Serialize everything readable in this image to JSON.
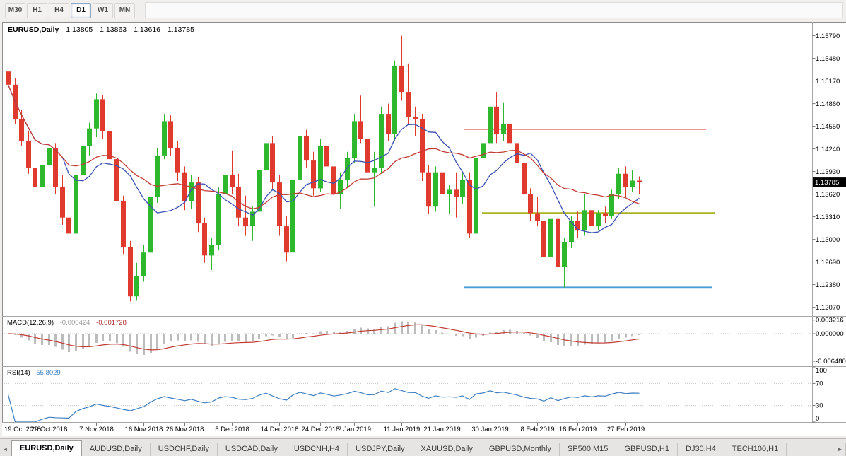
{
  "toolbar": {
    "timeframes": [
      {
        "label": "M30",
        "active": false
      },
      {
        "label": "H1",
        "active": false
      },
      {
        "label": "H4",
        "active": false
      },
      {
        "label": "D1",
        "active": true
      },
      {
        "label": "W1",
        "active": false
      },
      {
        "label": "MN",
        "active": false
      }
    ]
  },
  "chart": {
    "symbol": "EURUSD,Daily",
    "open": "1.13805",
    "high": "1.13863",
    "low": "1.13616",
    "close": "1.13785",
    "current_price_label": "1.13785"
  },
  "macd": {
    "name": "MACD(12,26,9)",
    "value_main": "-0.000424",
    "value_signal": "-0.001728"
  },
  "rsi": {
    "name": "RSI(14)",
    "value": "55.8029"
  },
  "tabs": {
    "left_scroll": "◄",
    "right_scroll": "►",
    "items": [
      {
        "label": "EURUSD,Daily",
        "active": true
      },
      {
        "label": "AUDUSD,Daily",
        "active": false
      },
      {
        "label": "USDCHF,Daily",
        "active": false
      },
      {
        "label": "USDCAD,Daily",
        "active": false
      },
      {
        "label": "USDCNH,H4",
        "active": false
      },
      {
        "label": "USDJPY,Daily",
        "active": false
      },
      {
        "label": "XAUUSD,Daily",
        "active": false
      },
      {
        "label": "GBPUSD,Monthly",
        "active": false
      },
      {
        "label": "SP500,M15",
        "active": false
      },
      {
        "label": "GBPUSD,H1",
        "active": false
      },
      {
        "label": "DJ30,H4",
        "active": false
      },
      {
        "label": "TECH100,H1",
        "active": false
      }
    ]
  },
  "colors": {
    "bull": "#2eb82e",
    "bear": "#e0392e",
    "background": "#ffffff",
    "axis_text": "#000000",
    "panel_border": "#a5a5a5",
    "price_box_bg": "#000000",
    "price_box_text": "#ffffff"
  },
  "chart_data": {
    "type": "candlestick",
    "symbol": "EURUSD",
    "timeframe": "Daily",
    "y_range": [
      1.1196,
      1.1598
    ],
    "price_ticks": [
      "1.15790",
      "1.15480",
      "1.15170",
      "1.14860",
      "1.14550",
      "1.14240",
      "1.13930",
      "1.13620",
      "1.13310",
      "1.13000",
      "1.12690",
      "1.12380",
      "1.12070"
    ],
    "date_labels": [
      "19 Oct 2018",
      "29 Oct 2018",
      "7 Nov 2018",
      "16 Nov 2018",
      "26 Nov 2018",
      "5 Dec 2018",
      "14 Dec 2018",
      "24 Dec 2018",
      "2 Jan 2019",
      "11 Jan 2019",
      "21 Jan 2019",
      "30 Jan 2019",
      "8 Feb 2019",
      "18 Feb 2019",
      "27 Feb 2019"
    ],
    "date_label_indices": [
      0,
      6,
      13,
      20,
      26,
      33,
      40,
      46,
      51,
      58,
      64,
      71,
      78,
      84,
      91
    ],
    "current_ohlc": {
      "open": 1.13805,
      "high": 1.13863,
      "low": 1.13616,
      "close": 1.13785
    },
    "candles": [
      [
        1.153,
        1.154,
        1.15,
        1.1512
      ],
      [
        1.1512,
        1.1521,
        1.1458,
        1.1465
      ],
      [
        1.1465,
        1.1478,
        1.1428,
        1.1435
      ],
      [
        1.1435,
        1.1449,
        1.139,
        1.1398
      ],
      [
        1.1398,
        1.1415,
        1.1362,
        1.1372
      ],
      [
        1.1372,
        1.141,
        1.1358,
        1.1402
      ],
      [
        1.1402,
        1.1438,
        1.1392,
        1.1425
      ],
      [
        1.1425,
        1.1432,
        1.1362,
        1.1372
      ],
      [
        1.1372,
        1.1388,
        1.132,
        1.133
      ],
      [
        1.133,
        1.1342,
        1.1302,
        1.1308
      ],
      [
        1.1308,
        1.1392,
        1.1302,
        1.1388
      ],
      [
        1.1388,
        1.1435,
        1.138,
        1.1428
      ],
      [
        1.1428,
        1.146,
        1.1415,
        1.1452
      ],
      [
        1.1452,
        1.15,
        1.144,
        1.1492
      ],
      [
        1.1492,
        1.1498,
        1.1438,
        1.1448
      ],
      [
        1.1448,
        1.1455,
        1.14,
        1.141
      ],
      [
        1.141,
        1.1418,
        1.1342,
        1.1352
      ],
      [
        1.1352,
        1.136,
        1.128,
        1.129
      ],
      [
        1.129,
        1.1298,
        1.1215,
        1.1222
      ],
      [
        1.1222,
        1.1268,
        1.1216,
        1.125
      ],
      [
        1.125,
        1.1292,
        1.1242,
        1.1282
      ],
      [
        1.1282,
        1.1365,
        1.1278,
        1.1358
      ],
      [
        1.1358,
        1.1425,
        1.135,
        1.1415
      ],
      [
        1.1415,
        1.1472,
        1.141,
        1.1462
      ],
      [
        1.1462,
        1.147,
        1.1415,
        1.1425
      ],
      [
        1.1425,
        1.1435,
        1.138,
        1.1392
      ],
      [
        1.1392,
        1.14,
        1.134,
        1.1352
      ],
      [
        1.1352,
        1.1388,
        1.1342,
        1.1378
      ],
      [
        1.1378,
        1.1385,
        1.131,
        1.1322
      ],
      [
        1.1322,
        1.133,
        1.1268,
        1.1278
      ],
      [
        1.1278,
        1.1302,
        1.1258,
        1.1292
      ],
      [
        1.1292,
        1.1372,
        1.1285,
        1.1362
      ],
      [
        1.1362,
        1.14,
        1.1352,
        1.1388
      ],
      [
        1.1388,
        1.1422,
        1.1362,
        1.1372
      ],
      [
        1.1372,
        1.139,
        1.1318,
        1.133
      ],
      [
        1.133,
        1.136,
        1.1305,
        1.1318
      ],
      [
        1.1318,
        1.1345,
        1.1298,
        1.1338
      ],
      [
        1.1338,
        1.1402,
        1.1332,
        1.1395
      ],
      [
        1.1395,
        1.144,
        1.1388,
        1.1432
      ],
      [
        1.1432,
        1.1442,
        1.1368,
        1.1378
      ],
      [
        1.1378,
        1.1388,
        1.1305,
        1.1318
      ],
      [
        1.1318,
        1.1332,
        1.127,
        1.1282
      ],
      [
        1.1282,
        1.139,
        1.1275,
        1.1382
      ],
      [
        1.1382,
        1.1485,
        1.1375,
        1.1442
      ],
      [
        1.1442,
        1.145,
        1.1398,
        1.1408
      ],
      [
        1.1408,
        1.142,
        1.136,
        1.137
      ],
      [
        1.137,
        1.1438,
        1.1365,
        1.1428
      ],
      [
        1.1428,
        1.144,
        1.139,
        1.14
      ],
      [
        1.14,
        1.1412,
        1.1352,
        1.1362
      ],
      [
        1.1362,
        1.1392,
        1.1342,
        1.1382
      ],
      [
        1.1382,
        1.142,
        1.1372,
        1.1412
      ],
      [
        1.1412,
        1.1472,
        1.1405,
        1.1462
      ],
      [
        1.1462,
        1.1497,
        1.1432,
        1.1438
      ],
      [
        1.1438,
        1.1442,
        1.1309,
        1.1392
      ],
      [
        1.1392,
        1.142,
        1.1345,
        1.1398
      ],
      [
        1.1398,
        1.1482,
        1.139,
        1.1472
      ],
      [
        1.1472,
        1.1486,
        1.1435,
        1.1445
      ],
      [
        1.1445,
        1.1545,
        1.1435,
        1.1538
      ],
      [
        1.1538,
        1.1579,
        1.149,
        1.1502
      ],
      [
        1.1502,
        1.1541,
        1.1458,
        1.1468
      ],
      [
        1.1468,
        1.1482,
        1.1442,
        1.1465
      ],
      [
        1.1465,
        1.1472,
        1.138,
        1.1392
      ],
      [
        1.1392,
        1.1402,
        1.1335,
        1.1345
      ],
      [
        1.1345,
        1.14,
        1.1338,
        1.1392
      ],
      [
        1.1392,
        1.1398,
        1.1352,
        1.1362
      ],
      [
        1.1362,
        1.1375,
        1.1335,
        1.1368
      ],
      [
        1.1368,
        1.1392,
        1.133,
        1.1358
      ],
      [
        1.1358,
        1.1392,
        1.1348,
        1.1382
      ],
      [
        1.1382,
        1.1392,
        1.1302,
        1.1308
      ],
      [
        1.1308,
        1.142,
        1.1302,
        1.1412
      ],
      [
        1.1412,
        1.1442,
        1.1402,
        1.1432
      ],
      [
        1.1432,
        1.1514,
        1.1425,
        1.1482
      ],
      [
        1.1482,
        1.1502,
        1.1432,
        1.1445
      ],
      [
        1.1445,
        1.1488,
        1.1435,
        1.1458
      ],
      [
        1.1458,
        1.1465,
        1.1425,
        1.1432
      ],
      [
        1.1432,
        1.144,
        1.1398,
        1.1405
      ],
      [
        1.1405,
        1.1412,
        1.1355,
        1.1362
      ],
      [
        1.1362,
        1.137,
        1.1325,
        1.1336
      ],
      [
        1.1336,
        1.1358,
        1.1318,
        1.1325
      ],
      [
        1.1325,
        1.133,
        1.1265,
        1.1276
      ],
      [
        1.1276,
        1.134,
        1.1258,
        1.1328
      ],
      [
        1.1328,
        1.1345,
        1.1255,
        1.1262
      ],
      [
        1.1262,
        1.1302,
        1.1234,
        1.1296
      ],
      [
        1.1296,
        1.1332,
        1.1288,
        1.1325
      ],
      [
        1.1325,
        1.1338,
        1.1302,
        1.1312
      ],
      [
        1.1312,
        1.1362,
        1.1305,
        1.134
      ],
      [
        1.134,
        1.1358,
        1.1302,
        1.1318
      ],
      [
        1.1318,
        1.134,
        1.1312,
        1.1336
      ],
      [
        1.1336,
        1.1345,
        1.1322,
        1.1332
      ],
      [
        1.1332,
        1.1368,
        1.1328,
        1.1362
      ],
      [
        1.1362,
        1.1398,
        1.1355,
        1.139
      ],
      [
        1.139,
        1.14,
        1.1358,
        1.1372
      ],
      [
        1.1372,
        1.1395,
        1.1365,
        1.13805
      ],
      [
        1.13805,
        1.13863,
        1.13616,
        1.13785
      ]
    ],
    "moving_averages": [
      {
        "name": "ma-fast-blue",
        "period": 9,
        "color": "#3c50b4"
      },
      {
        "name": "ma-slow-red",
        "period": 21,
        "color": "#c23b33"
      }
    ],
    "hlines": [
      {
        "name": "resistance-hline-red",
        "price": 1.1451,
        "color": "#e0564e",
        "width": 1.6,
        "x1": 0.57,
        "x2": 0.868
      },
      {
        "name": "pivot-hline-olive",
        "price": 1.1336,
        "color": "#aab41e",
        "width": 2.4,
        "x1": 0.592,
        "x2": 0.879
      },
      {
        "name": "support-hline-blue",
        "price": 1.1234,
        "color": "#4aa0d8",
        "width": 2.8,
        "x1": 0.57,
        "x2": 0.876
      }
    ],
    "indicators": {
      "macd": {
        "fast": 12,
        "slow": 26,
        "signal": 9,
        "current_main": -0.000424,
        "current_signal": -0.001728,
        "range": [
          -0.0075,
          0.004
        ],
        "ticks": [
          0.003216,
          0.0,
          -0.00648
        ],
        "tick_labels": [
          "0.003216",
          "0.000000",
          "-0.006480"
        ],
        "hist_color": "#bcbcbc",
        "signal_color": "#c23b33"
      },
      "rsi": {
        "period": 14,
        "current": 55.8029,
        "range": [
          0,
          100
        ],
        "levels": [
          30,
          70
        ],
        "ticks": [
          100,
          70,
          30,
          0
        ],
        "color": "#3f7fc1"
      }
    }
  }
}
